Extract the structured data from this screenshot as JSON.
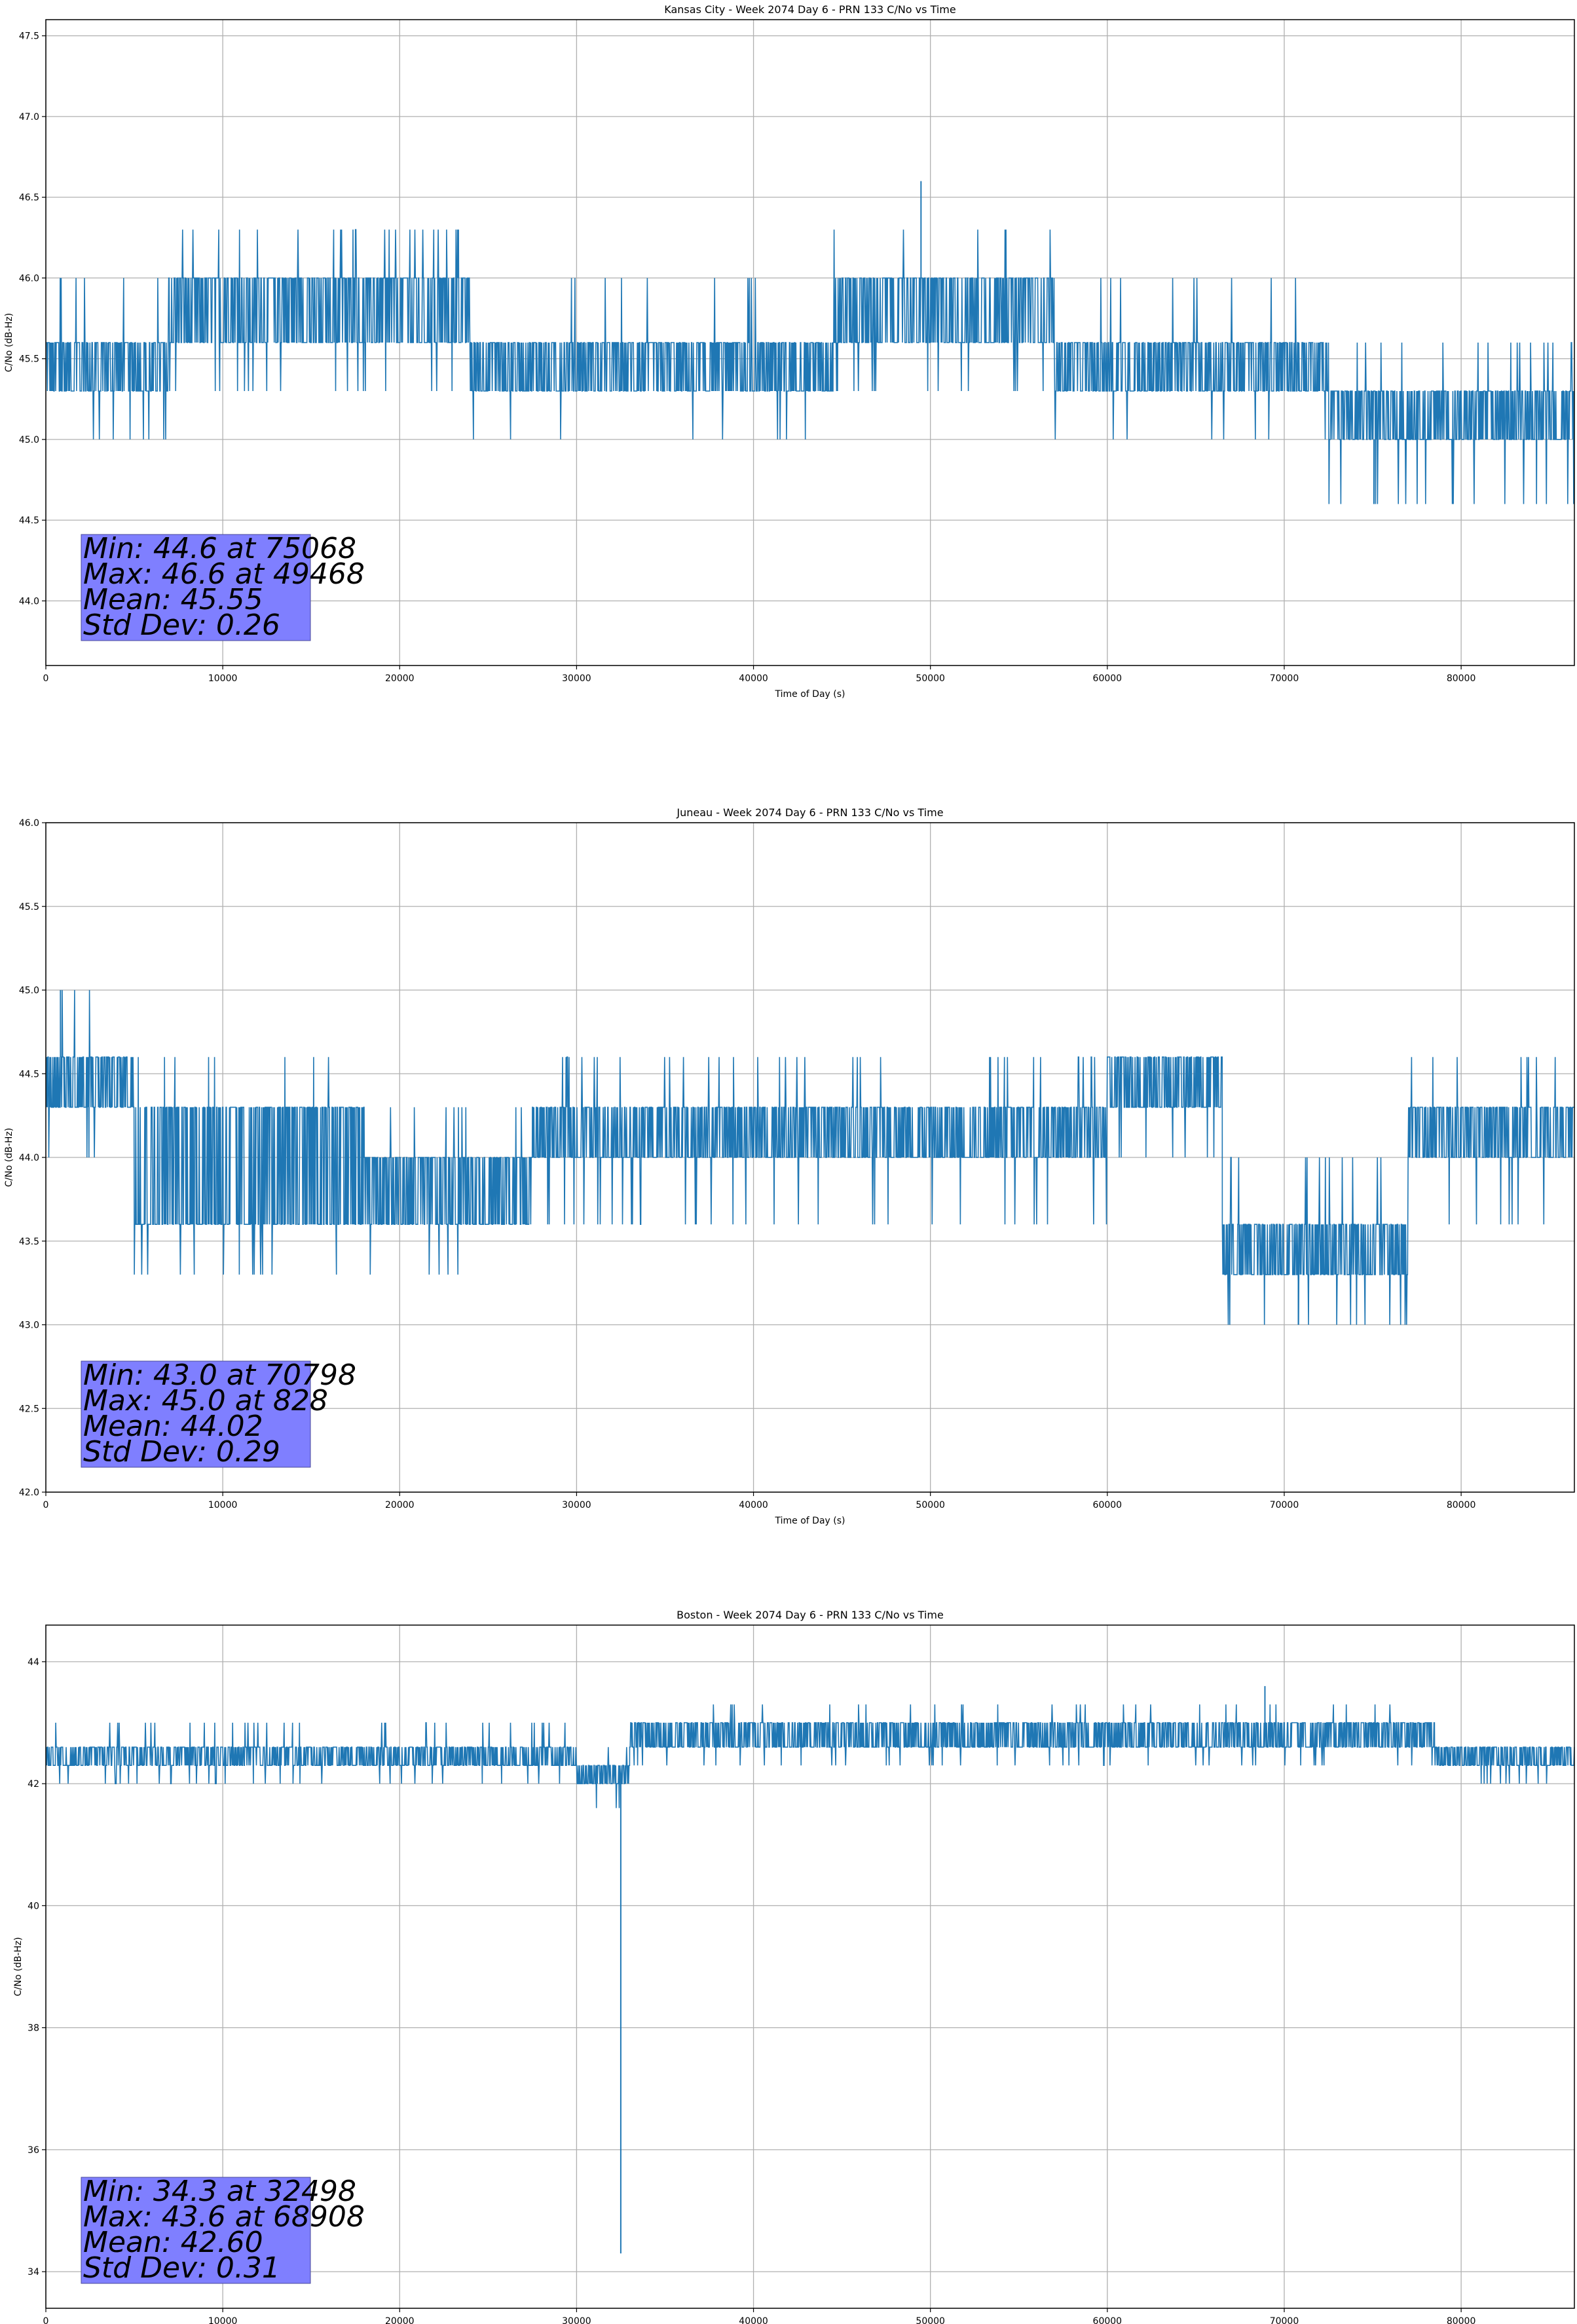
{
  "colors": {
    "line": "#1f77b4",
    "grid": "#b0b0b0",
    "stats_box": "#7f7fff",
    "axis": "#000000"
  },
  "chart_data": [
    {
      "type": "line",
      "title": "Kansas City - Week 2074 Day 6 - PRN 133 C/No vs Time",
      "xlabel": "Time of Day (s)",
      "ylabel": "C/No (dB-Hz)",
      "xlim": [
        0,
        86400
      ],
      "ylim": [
        43.6,
        47.6
      ],
      "grid": true,
      "xticks": [
        0,
        10000,
        20000,
        30000,
        40000,
        50000,
        60000,
        70000,
        80000
      ],
      "xtick_labels": [
        "0",
        "10000",
        "20000",
        "30000",
        "40000",
        "50000",
        "60000",
        "70000",
        "80000"
      ],
      "yticks": [
        44.0,
        44.5,
        45.0,
        45.5,
        46.0,
        46.5,
        47.0,
        47.5
      ],
      "ytick_labels": [
        "44.0",
        "44.5",
        "45.0",
        "45.5",
        "46.0",
        "46.5",
        "47.0",
        "47.5"
      ],
      "series": [
        {
          "name": "C/No",
          "segments": [
            {
              "x_start": 0,
              "x_end": 7000,
              "band": [
                45.3,
                45.6
              ],
              "spike_high": 46.0,
              "spike_low": 45.0,
              "density": 0.35
            },
            {
              "x_start": 7000,
              "x_end": 24000,
              "band": [
                45.6,
                46.0
              ],
              "spike_high": 46.3,
              "spike_low": 45.3,
              "density": 0.3
            },
            {
              "x_start": 24000,
              "x_end": 44500,
              "band": [
                45.3,
                45.6
              ],
              "spike_high": 46.0,
              "spike_low": 45.0,
              "density": 0.15
            },
            {
              "x_start": 44500,
              "x_end": 57000,
              "band": [
                45.6,
                46.0
              ],
              "spike_high": 46.3,
              "spike_low": 45.3,
              "density": 0.3
            },
            {
              "x_start": 57000,
              "x_end": 72500,
              "band": [
                45.3,
                45.6
              ],
              "spike_high": 46.0,
              "spike_low": 45.0,
              "density": 0.2
            },
            {
              "x_start": 72500,
              "x_end": 86400,
              "band": [
                45.0,
                45.3
              ],
              "spike_high": 45.6,
              "spike_low": 44.6,
              "density": 0.4
            }
          ],
          "extremes": [
            {
              "x": 75068,
              "y": 44.6
            },
            {
              "x": 49468,
              "y": 46.6
            }
          ]
        }
      ],
      "stats": {
        "min": "Min: 44.6 at 75068",
        "max": "Max: 46.6 at 49468",
        "mean": "Mean: 45.55",
        "std": "Std Dev: 0.26"
      }
    },
    {
      "type": "line",
      "title": "Juneau - Week 2074 Day 6 - PRN 133 C/No vs Time",
      "xlabel": "Time of Day (s)",
      "ylabel": "C/No (dB-Hz)",
      "xlim": [
        0,
        86400
      ],
      "ylim": [
        42.0,
        46.0
      ],
      "grid": true,
      "xticks": [
        0,
        10000,
        20000,
        30000,
        40000,
        50000,
        60000,
        70000,
        80000
      ],
      "xtick_labels": [
        "0",
        "10000",
        "20000",
        "30000",
        "40000",
        "50000",
        "60000",
        "70000",
        "80000"
      ],
      "yticks": [
        42.0,
        42.5,
        43.0,
        43.5,
        44.0,
        44.5,
        45.0,
        45.5,
        46.0
      ],
      "ytick_labels": [
        "42.0",
        "42.5",
        "43.0",
        "43.5",
        "44.0",
        "44.5",
        "45.0",
        "45.5",
        "46.0"
      ],
      "series": [
        {
          "name": "C/No",
          "segments": [
            {
              "x_start": 0,
              "x_end": 5000,
              "band": [
                44.3,
                44.6
              ],
              "spike_high": 45.0,
              "spike_low": 44.0,
              "density": 0.4
            },
            {
              "x_start": 5000,
              "x_end": 18000,
              "band": [
                43.6,
                44.3
              ],
              "spike_high": 44.6,
              "spike_low": 43.3,
              "density": 0.25
            },
            {
              "x_start": 18000,
              "x_end": 27500,
              "band": [
                43.6,
                44.0
              ],
              "spike_high": 44.3,
              "spike_low": 43.3,
              "density": 0.3
            },
            {
              "x_start": 27500,
              "x_end": 60000,
              "band": [
                44.0,
                44.3
              ],
              "spike_high": 44.6,
              "spike_low": 43.6,
              "density": 0.3
            },
            {
              "x_start": 60000,
              "x_end": 66500,
              "band": [
                44.3,
                44.6
              ],
              "spike_high": 44.6,
              "spike_low": 44.0,
              "density": 0.4
            },
            {
              "x_start": 66500,
              "x_end": 77000,
              "band": [
                43.3,
                43.6
              ],
              "spike_high": 44.0,
              "spike_low": 43.0,
              "density": 0.35
            },
            {
              "x_start": 77000,
              "x_end": 86400,
              "band": [
                44.0,
                44.3
              ],
              "spike_high": 44.6,
              "spike_low": 43.6,
              "density": 0.3
            }
          ],
          "extremes": [
            {
              "x": 70798,
              "y": 43.0
            },
            {
              "x": 828,
              "y": 45.0
            }
          ]
        }
      ],
      "stats": {
        "min": "Min: 43.0 at 70798",
        "max": "Max: 45.0 at 828",
        "mean": "Mean: 44.02",
        "std": "Std Dev: 0.29"
      }
    },
    {
      "type": "line",
      "title": "Boston - Week 2074 Day 6 - PRN 133 C/No vs Time",
      "xlabel": "Time of Day (s)",
      "ylabel": "C/No (dB-Hz)",
      "xlim": [
        0,
        86400
      ],
      "ylim": [
        33.4,
        44.6
      ],
      "grid": true,
      "xticks": [
        0,
        10000,
        20000,
        30000,
        40000,
        50000,
        60000,
        70000,
        80000
      ],
      "xtick_labels": [
        "0",
        "10000",
        "20000",
        "30000",
        "40000",
        "50000",
        "60000",
        "70000",
        "80000"
      ],
      "yticks": [
        34,
        36,
        38,
        40,
        42,
        44
      ],
      "ytick_labels": [
        "34",
        "36",
        "38",
        "40",
        "42",
        "44"
      ],
      "series": [
        {
          "name": "C/No",
          "segments": [
            {
              "x_start": 0,
              "x_end": 7000,
              "band": [
                42.3,
                42.6
              ],
              "spike_high": 43.0,
              "spike_low": 42.0,
              "density": 0.35
            },
            {
              "x_start": 7000,
              "x_end": 30000,
              "band": [
                42.3,
                42.6
              ],
              "spike_high": 43.0,
              "spike_low": 42.0,
              "density": 0.35
            },
            {
              "x_start": 30000,
              "x_end": 33000,
              "band": [
                42.0,
                42.3
              ],
              "spike_high": 42.6,
              "spike_low": 41.6,
              "density": 0.3
            },
            {
              "x_start": 33000,
              "x_end": 55000,
              "band": [
                42.6,
                43.0
              ],
              "spike_high": 43.3,
              "spike_low": 42.3,
              "density": 0.3
            },
            {
              "x_start": 55000,
              "x_end": 78500,
              "band": [
                42.6,
                43.0
              ],
              "spike_high": 43.3,
              "spike_low": 42.3,
              "density": 0.3
            },
            {
              "x_start": 78500,
              "x_end": 86400,
              "band": [
                42.3,
                42.6
              ],
              "spike_high": 42.6,
              "spike_low": 42.0,
              "density": 0.4
            }
          ],
          "extremes": [
            {
              "x": 32498,
              "y": 34.3
            },
            {
              "x": 68908,
              "y": 43.6
            }
          ]
        }
      ],
      "stats": {
        "min": "Min: 34.3 at 32498",
        "max": "Max: 43.6 at 68908",
        "mean": "Mean: 42.60",
        "std": "Std Dev: 0.31"
      }
    }
  ]
}
